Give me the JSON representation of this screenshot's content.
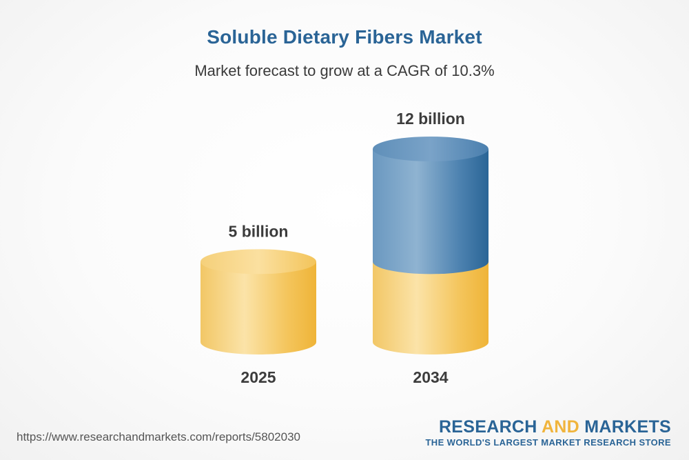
{
  "chart_data": {
    "type": "bar",
    "title": "Soluble Dietary Fibers Market",
    "subtitle": "Market forecast to grow at a CAGR of 10.3%",
    "categories": [
      "2025",
      "2034"
    ],
    "values": [
      5,
      12
    ],
    "value_labels": [
      "5 billion",
      "12 billion"
    ],
    "ylim": [
      0,
      12
    ],
    "grid": false,
    "colors": {
      "base": "#f2c04a",
      "growth": "#2d6a9b"
    }
  },
  "footer": {
    "source_url": "https://www.researchandmarkets.com/reports/5802030",
    "brand_part1": "RESEARCH ",
    "brand_part2": "AND",
    "brand_part3": " MARKETS",
    "brand_tagline": "THE WORLD'S LARGEST MARKET RESEARCH STORE"
  }
}
